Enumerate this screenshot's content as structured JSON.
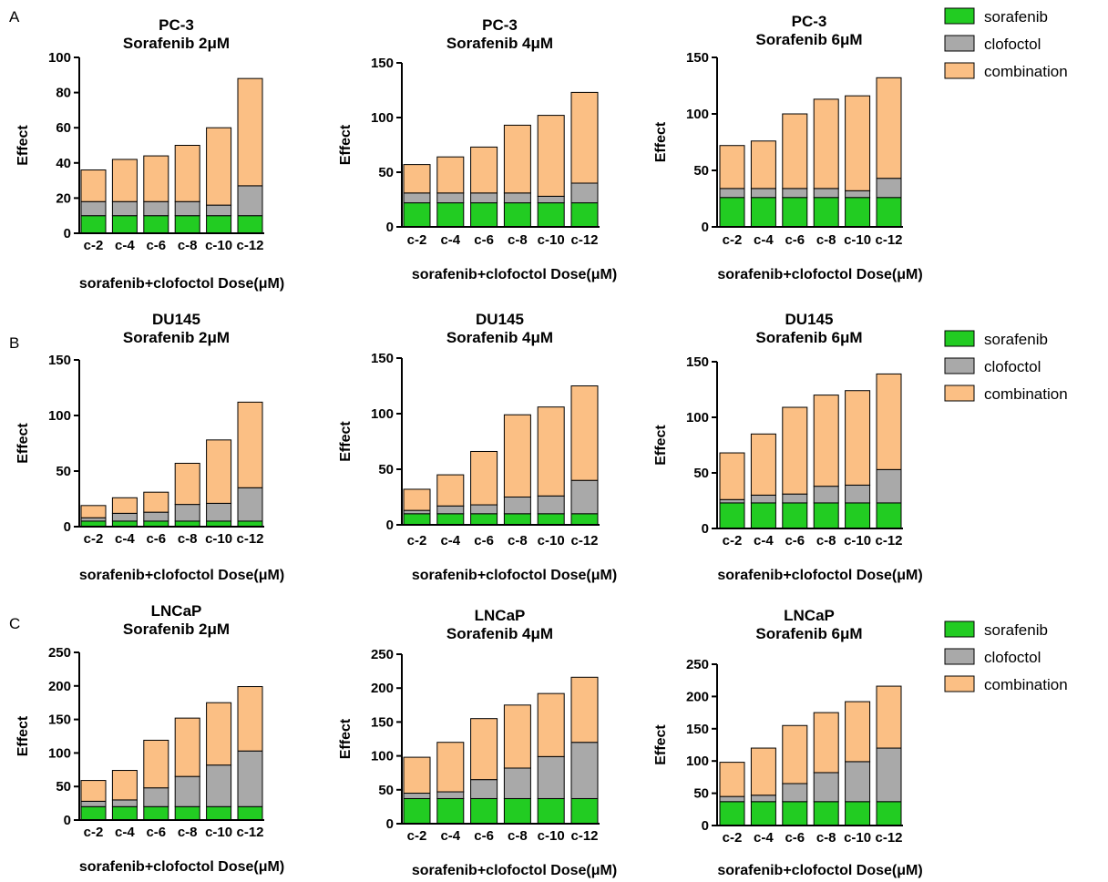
{
  "panels": [
    "A",
    "B",
    "C"
  ],
  "colors": {
    "sorafenib": "#22cc22",
    "clofoctol": "#a9a9a9",
    "combination": "#fbbf84",
    "stroke": "#000000"
  },
  "legend": [
    "sorafenib",
    "clofoctol",
    "combination"
  ],
  "chart_data": [
    {
      "type": "bar",
      "stacked": true,
      "title": [
        "PC-3",
        "Sorafenib 2μM"
      ],
      "xlabel": "sorafenib+clofoctol Dose(μM)",
      "ylabel": "Effect",
      "ylim": [
        0,
        100
      ],
      "yticks": [
        0,
        20,
        40,
        60,
        80,
        100
      ],
      "categories": [
        "c-2",
        "c-4",
        "c-6",
        "c-8",
        "c-10",
        "c-12"
      ],
      "series": [
        {
          "name": "sorafenib",
          "values": [
            10,
            10,
            10,
            10,
            10,
            10
          ]
        },
        {
          "name": "clofoctol",
          "values": [
            8,
            8,
            8,
            8,
            6,
            17
          ]
        },
        {
          "name": "combination",
          "values": [
            18,
            24,
            26,
            32,
            44,
            61
          ]
        }
      ]
    },
    {
      "type": "bar",
      "stacked": true,
      "title": [
        "PC-3",
        "Sorafenib 4μM"
      ],
      "xlabel": "sorafenib+clofoctol Dose(μM)",
      "ylabel": "Effect",
      "ylim": [
        0,
        150
      ],
      "yticks": [
        0,
        50,
        100,
        150
      ],
      "categories": [
        "c-2",
        "c-4",
        "c-6",
        "c-8",
        "c-10",
        "c-12"
      ],
      "series": [
        {
          "name": "sorafenib",
          "values": [
            22,
            22,
            22,
            22,
            22,
            22
          ]
        },
        {
          "name": "clofoctol",
          "values": [
            9,
            9,
            9,
            9,
            6,
            18
          ]
        },
        {
          "name": "combination",
          "values": [
            26,
            33,
            42,
            62,
            74,
            83
          ]
        }
      ]
    },
    {
      "type": "bar",
      "stacked": true,
      "title": [
        "PC-3",
        "Sorafenib 6μM"
      ],
      "xlabel": "sorafenib+clofoctol Dose(μM)",
      "ylabel": "Effect",
      "ylim": [
        0,
        150
      ],
      "yticks": [
        0,
        50,
        100,
        150
      ],
      "categories": [
        "c-2",
        "c-4",
        "c-6",
        "c-8",
        "c-10",
        "c-12"
      ],
      "series": [
        {
          "name": "sorafenib",
          "values": [
            26,
            26,
            26,
            26,
            26,
            26
          ]
        },
        {
          "name": "clofoctol",
          "values": [
            8,
            8,
            8,
            8,
            6,
            17
          ]
        },
        {
          "name": "combination",
          "values": [
            38,
            42,
            66,
            79,
            84,
            89
          ]
        }
      ]
    },
    {
      "type": "bar",
      "stacked": true,
      "title": [
        "DU145",
        "Sorafenib 2μM"
      ],
      "xlabel": "sorafenib+clofoctol Dose(μM)",
      "ylabel": "Effect",
      "ylim": [
        0,
        150
      ],
      "yticks": [
        0,
        50,
        100,
        150
      ],
      "categories": [
        "c-2",
        "c-4",
        "c-6",
        "c-8",
        "c-10",
        "c-12"
      ],
      "series": [
        {
          "name": "sorafenib",
          "values": [
            5,
            5,
            5,
            5,
            5,
            5
          ]
        },
        {
          "name": "clofoctol",
          "values": [
            3,
            7,
            8,
            15,
            16,
            30
          ]
        },
        {
          "name": "combination",
          "values": [
            11,
            14,
            18,
            37,
            57,
            77
          ]
        }
      ]
    },
    {
      "type": "bar",
      "stacked": true,
      "title": [
        "DU145",
        "Sorafenib 4μM"
      ],
      "xlabel": "sorafenib+clofoctol Dose(μM)",
      "ylabel": "Effect",
      "ylim": [
        0,
        150
      ],
      "yticks": [
        0,
        50,
        100,
        150
      ],
      "categories": [
        "c-2",
        "c-4",
        "c-6",
        "c-8",
        "c-10",
        "c-12"
      ],
      "series": [
        {
          "name": "sorafenib",
          "values": [
            10,
            10,
            10,
            10,
            10,
            10
          ]
        },
        {
          "name": "clofoctol",
          "values": [
            3,
            7,
            8,
            15,
            16,
            30
          ]
        },
        {
          "name": "combination",
          "values": [
            19,
            28,
            48,
            74,
            80,
            85
          ]
        }
      ]
    },
    {
      "type": "bar",
      "stacked": true,
      "title": [
        "DU145",
        "Sorafenib 6μM"
      ],
      "xlabel": "sorafenib+clofoctol Dose(μM)",
      "ylabel": "Effect",
      "ylim": [
        0,
        150
      ],
      "yticks": [
        0,
        50,
        100,
        150
      ],
      "categories": [
        "c-2",
        "c-4",
        "c-6",
        "c-8",
        "c-10",
        "c-12"
      ],
      "series": [
        {
          "name": "sorafenib",
          "values": [
            23,
            23,
            23,
            23,
            23,
            23
          ]
        },
        {
          "name": "clofoctol",
          "values": [
            3,
            7,
            8,
            15,
            16,
            30
          ]
        },
        {
          "name": "combination",
          "values": [
            42,
            55,
            78,
            82,
            85,
            86
          ]
        }
      ]
    },
    {
      "type": "bar",
      "stacked": true,
      "title": [
        "LNCaP",
        "Sorafenib 2μM"
      ],
      "xlabel": "sorafenib+clofoctol Dose(μM)",
      "ylabel": "Effect",
      "ylim": [
        0,
        250
      ],
      "yticks": [
        0,
        50,
        100,
        150,
        200,
        250
      ],
      "categories": [
        "c-2",
        "c-4",
        "c-6",
        "c-8",
        "c-10",
        "c-12"
      ],
      "series": [
        {
          "name": "sorafenib",
          "values": [
            20,
            20,
            20,
            20,
            20,
            20
          ]
        },
        {
          "name": "clofoctol",
          "values": [
            8,
            10,
            28,
            45,
            62,
            83
          ]
        },
        {
          "name": "combination",
          "values": [
            31,
            44,
            71,
            87,
            93,
            96
          ]
        }
      ]
    },
    {
      "type": "bar",
      "stacked": true,
      "title": [
        "LNCaP",
        "Sorafenib 4μM"
      ],
      "xlabel": "sorafenib+clofoctol Dose(μM)",
      "ylabel": "Effect",
      "ylim": [
        0,
        250
      ],
      "yticks": [
        0,
        50,
        100,
        150,
        200,
        250
      ],
      "categories": [
        "c-2",
        "c-4",
        "c-6",
        "c-8",
        "c-10",
        "c-12"
      ],
      "series": [
        {
          "name": "sorafenib",
          "values": [
            37,
            37,
            37,
            37,
            37,
            37
          ]
        },
        {
          "name": "clofoctol",
          "values": [
            8,
            10,
            28,
            45,
            62,
            83
          ]
        },
        {
          "name": "combination",
          "values": [
            53,
            73,
            90,
            93,
            93,
            96
          ]
        }
      ]
    },
    {
      "type": "bar",
      "stacked": true,
      "title": [
        "LNCaP",
        "Sorafenib 6μM"
      ],
      "xlabel": "sorafenib+clofoctol Dose(μM)",
      "ylabel": "Effect",
      "ylim": [
        0,
        250
      ],
      "yticks": [
        0,
        50,
        100,
        150,
        200,
        250
      ],
      "categories": [
        "c-2",
        "c-4",
        "c-6",
        "c-8",
        "c-10",
        "c-12"
      ],
      "series": [
        {
          "name": "sorafenib",
          "values": [
            37,
            37,
            37,
            37,
            37,
            37
          ]
        },
        {
          "name": "clofoctol",
          "values": [
            8,
            10,
            28,
            45,
            62,
            83
          ]
        },
        {
          "name": "combination",
          "values": [
            53,
            73,
            90,
            93,
            93,
            96
          ]
        }
      ]
    }
  ]
}
